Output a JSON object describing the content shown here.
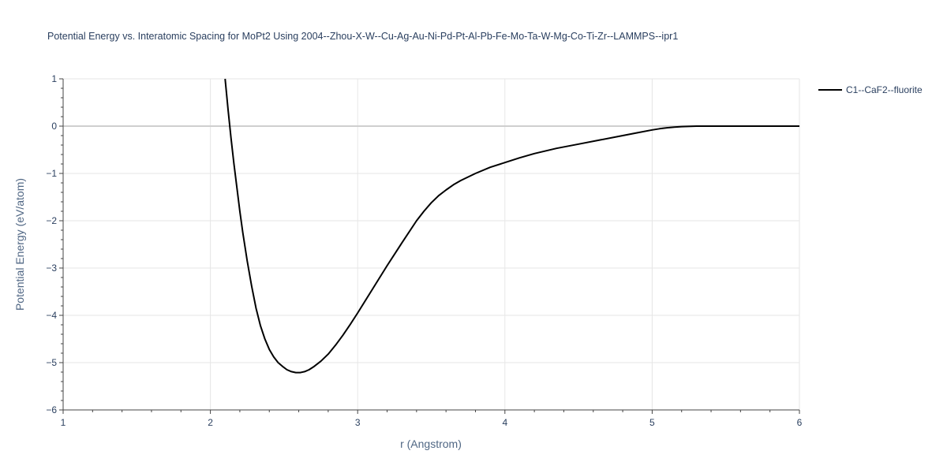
{
  "chart_data": {
    "type": "line",
    "title": "Potential Energy vs. Interatomic Spacing for MoPt2 Using 2004--Zhou-X-W--Cu-Ag-Au-Ni-Pd-Pt-Al-Pb-Fe-Mo-Ta-W-Mg-Co-Ti-Zr--LAMMPS--ipr1",
    "xlabel": "r (Angstrom)",
    "ylabel": "Potential Energy (eV/atom)",
    "xlim": [
      1,
      6
    ],
    "ylim": [
      -6,
      1
    ],
    "x_ticks": [
      1,
      2,
      3,
      4,
      5,
      6
    ],
    "y_ticks": [
      1,
      0,
      -1,
      -2,
      -3,
      -4,
      -5,
      -6
    ],
    "x_tick_labels": [
      "1",
      "2",
      "3",
      "4",
      "5",
      "6"
    ],
    "y_tick_labels": [
      "1",
      "0",
      "−1",
      "−2",
      "−3",
      "−4",
      "−5",
      "−6"
    ],
    "grid": true,
    "legend_position": "top-right",
    "series": [
      {
        "name": "C1--CaF2--fluorite",
        "color": "#000000",
        "x": [
          2.1,
          2.12,
          2.14,
          2.16,
          2.18,
          2.2,
          2.22,
          2.25,
          2.28,
          2.31,
          2.34,
          2.37,
          2.4,
          2.43,
          2.46,
          2.49,
          2.52,
          2.55,
          2.58,
          2.61,
          2.64,
          2.67,
          2.7,
          2.75,
          2.8,
          2.85,
          2.9,
          2.95,
          3.0,
          3.1,
          3.2,
          3.3,
          3.4,
          3.45,
          3.5,
          3.55,
          3.6,
          3.65,
          3.7,
          3.8,
          3.9,
          4.0,
          4.1,
          4.2,
          4.35,
          4.5,
          4.65,
          4.8,
          4.9,
          5.0,
          5.05,
          5.1,
          5.15,
          5.2,
          5.3,
          5.4,
          5.6,
          5.8,
          6.0
        ],
        "y": [
          1.0,
          0.35,
          -0.25,
          -0.8,
          -1.3,
          -1.8,
          -2.25,
          -2.85,
          -3.38,
          -3.85,
          -4.22,
          -4.5,
          -4.72,
          -4.88,
          -5.0,
          -5.08,
          -5.15,
          -5.19,
          -5.21,
          -5.21,
          -5.19,
          -5.15,
          -5.09,
          -4.97,
          -4.82,
          -4.63,
          -4.42,
          -4.19,
          -3.95,
          -3.45,
          -2.95,
          -2.47,
          -2.0,
          -1.8,
          -1.62,
          -1.47,
          -1.35,
          -1.24,
          -1.15,
          -1.0,
          -0.87,
          -0.77,
          -0.67,
          -0.58,
          -0.47,
          -0.38,
          -0.29,
          -0.2,
          -0.14,
          -0.08,
          -0.055,
          -0.035,
          -0.02,
          -0.01,
          0.0,
          0.0,
          0.0,
          0.0,
          0.0
        ]
      }
    ]
  }
}
